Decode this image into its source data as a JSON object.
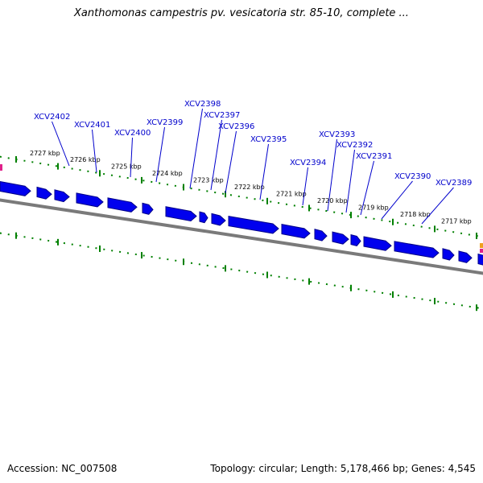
{
  "title": "Xanthomonas campestris pv. vesicatoria str. 85-10, complete ...",
  "accession": "Accession: NC_007508",
  "summary": "Topology: circular; Length: 5,178,466 bp; Genes: 4,545",
  "colors": {
    "gene_fill": "#0000ee",
    "gene_shade": "#000088",
    "backbone": "#7a7a7a",
    "tick": "#008000",
    "label": "#0000cc",
    "leader": "#0000cc",
    "marker_magenta": "#e0218a",
    "marker_orange": "#f0a020"
  },
  "ticks_labels": [
    {
      "text": "2727 kbp",
      "kb": 2727
    },
    {
      "text": "2726 kbp",
      "kb": 2726
    },
    {
      "text": "2725 kbp",
      "kb": 2725
    },
    {
      "text": "2724 kbp",
      "kb": 2724
    },
    {
      "text": "2723 kbp",
      "kb": 2723
    },
    {
      "text": "2722 kbp",
      "kb": 2722
    },
    {
      "text": "2721 kbp",
      "kb": 2721
    },
    {
      "text": "2720 kbp",
      "kb": 2720
    },
    {
      "text": "2719 kbp",
      "kb": 2719
    },
    {
      "text": "2718 kbp",
      "kb": 2718
    },
    {
      "text": "2717 kbp",
      "kb": 2717
    }
  ],
  "genes": [
    {
      "name": "XCV2402"
    },
    {
      "name": "XCV2401"
    },
    {
      "name": "XCV2400"
    },
    {
      "name": "XCV2399"
    },
    {
      "name": "XCV2398"
    },
    {
      "name": "XCV2397"
    },
    {
      "name": "XCV2396"
    },
    {
      "name": "XCV2395"
    },
    {
      "name": "XCV2394"
    },
    {
      "name": "XCV2393"
    },
    {
      "name": "XCV2392"
    },
    {
      "name": "XCV2391"
    },
    {
      "name": "XCV2390"
    },
    {
      "name": "XCV2389"
    }
  ]
}
